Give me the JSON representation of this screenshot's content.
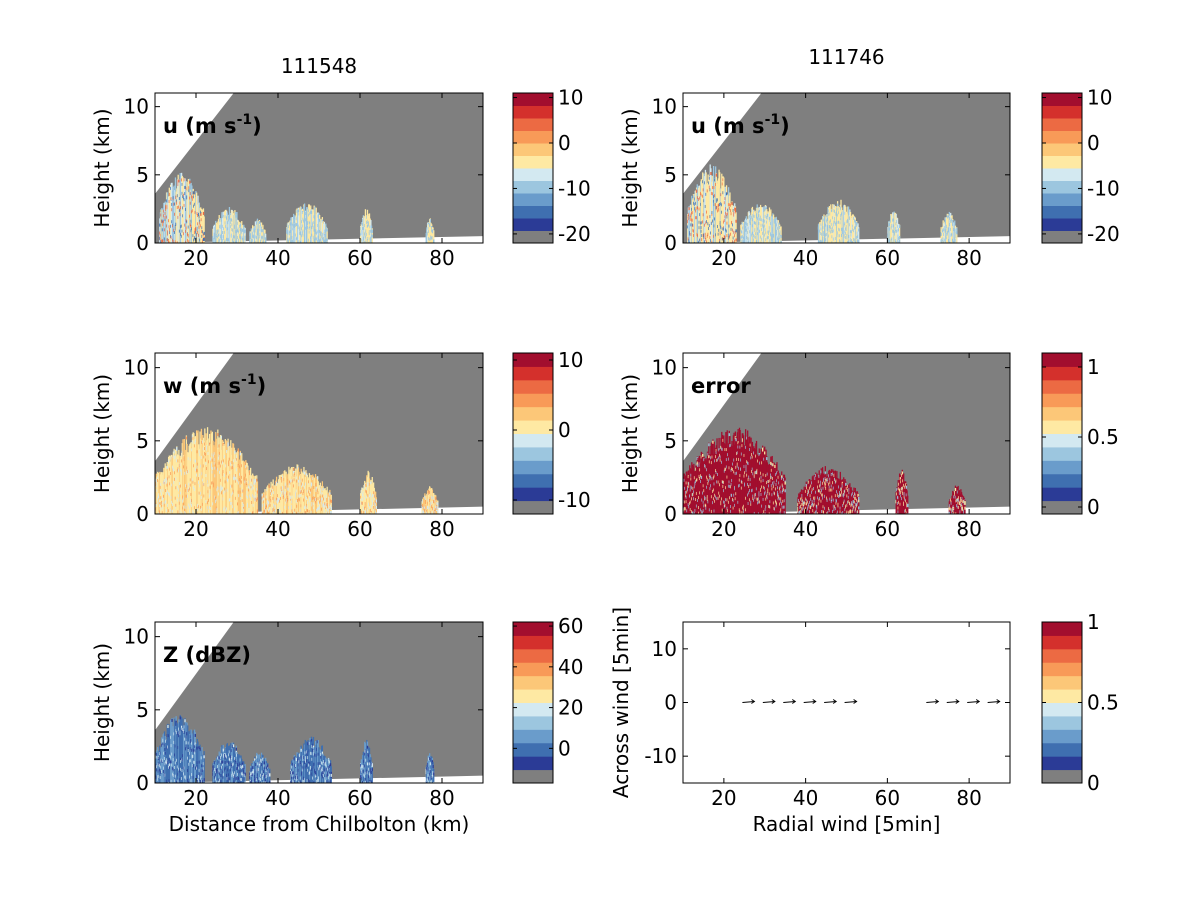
{
  "figure": {
    "col_titles": [
      "111548",
      "111746"
    ],
    "palette": [
      "#7f7f7f",
      "#2b3b96",
      "#3f6fb0",
      "#6a9ccb",
      "#9cc6df",
      "#d3e9f1",
      "#fee9a3",
      "#fcc778",
      "#f89a58",
      "#ec6a43",
      "#d4302c",
      "#a20e2e"
    ],
    "panels": [
      {
        "key": "u_111548",
        "type": "section",
        "label_main": "u (m s",
        "label_sup": "-1",
        "label_tail": ")",
        "x_ticks": [
          20,
          40,
          60,
          80
        ],
        "y_ticks": [
          0,
          5,
          10
        ],
        "ylabel": "Height (km)",
        "xlabel": "",
        "colorbar_ticks": [
          "10",
          "0",
          "-10",
          "-20"
        ],
        "echo_style": "u"
      },
      {
        "key": "u_111746",
        "type": "section",
        "label_main": "u (m s",
        "label_sup": "-1",
        "label_tail": ")",
        "x_ticks": [
          20,
          40,
          60,
          80
        ],
        "y_ticks": [
          0,
          5,
          10
        ],
        "ylabel": "Height (km)",
        "xlabel": "",
        "colorbar_ticks": [
          "10",
          "0",
          "-10",
          "-20"
        ],
        "echo_style": "u"
      },
      {
        "key": "w_111548",
        "type": "section",
        "label_main": "w (m s",
        "label_sup": "-1",
        "label_tail": ")",
        "x_ticks": [
          20,
          40,
          60,
          80
        ],
        "y_ticks": [
          0,
          5,
          10
        ],
        "ylabel": "Height (km)",
        "xlabel": "",
        "colorbar_ticks": [
          "10",
          "0",
          "-10"
        ],
        "echo_style": "w"
      },
      {
        "key": "error_111746",
        "type": "section",
        "label_main": "error",
        "label_sup": "",
        "label_tail": "",
        "x_ticks": [
          20,
          40,
          60,
          80
        ],
        "y_ticks": [
          0,
          5,
          10
        ],
        "ylabel": "Height (km)",
        "xlabel": "",
        "colorbar_ticks": [
          "1",
          "0.5",
          "0"
        ],
        "echo_style": "error"
      },
      {
        "key": "Z_111548",
        "type": "section",
        "label_main": "Z (dBZ)",
        "label_sup": "",
        "label_tail": "",
        "x_ticks": [
          20,
          40,
          60,
          80
        ],
        "y_ticks": [
          0,
          5,
          10
        ],
        "ylabel": "Height (km)",
        "xlabel": "Distance from Chilbolton (km)",
        "colorbar_ticks": [
          "60",
          "40",
          "20",
          "0"
        ],
        "echo_style": "Z"
      },
      {
        "key": "wind_111746",
        "type": "quiver",
        "label_main": "",
        "label_sup": "",
        "label_tail": "",
        "x_ticks": [
          20,
          40,
          60,
          80
        ],
        "y_ticks": [
          10,
          0,
          -10
        ],
        "ylabel": "Across wind [5min]",
        "xlabel": "Radial wind [5min]",
        "colorbar_ticks": [
          "1",
          "0.5",
          "0"
        ],
        "echo_style": "none"
      }
    ]
  },
  "chart_data": [
    {
      "type": "heatmap",
      "title": "111548",
      "panel_label": "u (m s-1)",
      "xlabel": "",
      "ylabel": "Height (km)",
      "xlim": [
        10,
        90
      ],
      "ylim": [
        0,
        11
      ],
      "colorbar": {
        "min": -22,
        "max": 11,
        "ticks": [
          10,
          0,
          -10,
          -20
        ]
      },
      "echoes_x_km": [
        [
          11,
          22
        ],
        [
          24,
          32
        ],
        [
          33,
          37
        ],
        [
          42,
          52
        ],
        [
          60,
          63
        ],
        [
          76,
          78
        ]
      ],
      "echo_top_km": [
        5.2,
        2.7,
        1.8,
        3.0,
        2.6,
        1.9
      ]
    },
    {
      "type": "heatmap",
      "title": "111746",
      "panel_label": "u (m s-1)",
      "xlabel": "",
      "ylabel": "Height (km)",
      "xlim": [
        10,
        90
      ],
      "ylim": [
        0,
        11
      ],
      "colorbar": {
        "min": -22,
        "max": 11,
        "ticks": [
          10,
          0,
          -10,
          -20
        ]
      },
      "echoes_x_km": [
        [
          11,
          23
        ],
        [
          24,
          34
        ],
        [
          43,
          53
        ],
        [
          60,
          63
        ],
        [
          73,
          77
        ]
      ],
      "echo_top_km": [
        5.8,
        3.0,
        3.2,
        2.7,
        2.4
      ]
    },
    {
      "type": "heatmap",
      "panel_label": "w (m s-1)",
      "xlabel": "",
      "ylabel": "Height (km)",
      "xlim": [
        10,
        90
      ],
      "ylim": [
        0,
        11
      ],
      "colorbar": {
        "min": -12,
        "max": 11,
        "ticks": [
          10,
          0,
          -10
        ]
      },
      "echoes_x_km": [
        [
          10,
          35
        ],
        [
          36,
          53
        ],
        [
          60,
          64
        ],
        [
          75,
          79
        ]
      ],
      "echo_top_km": [
        6,
        3.4,
        3.0,
        1.9
      ]
    },
    {
      "type": "heatmap",
      "panel_label": "error",
      "xlabel": "",
      "ylabel": "Height (km)",
      "xlim": [
        10,
        90
      ],
      "ylim": [
        0,
        11
      ],
      "colorbar": {
        "min": -0.05,
        "max": 1.1,
        "ticks": [
          1,
          0.5,
          0
        ]
      },
      "echoes_x_km": [
        [
          10,
          35
        ],
        [
          38,
          53
        ],
        [
          62,
          65
        ],
        [
          75,
          79
        ]
      ],
      "echo_top_km": [
        6,
        3.3,
        3.2,
        2.0
      ]
    },
    {
      "type": "heatmap",
      "panel_label": "Z (dBZ)",
      "xlabel": "Distance from Chilbolton (km)",
      "ylabel": "Height (km)",
      "xlim": [
        10,
        90
      ],
      "ylim": [
        0,
        11
      ],
      "colorbar": {
        "min": -17,
        "max": 62,
        "ticks": [
          60,
          40,
          20,
          0
        ]
      },
      "echoes_x_km": [
        [
          10,
          22
        ],
        [
          24,
          32
        ],
        [
          33,
          38
        ],
        [
          43,
          53
        ],
        [
          60,
          63
        ],
        [
          76,
          78
        ]
      ],
      "echo_top_km": [
        4.8,
        3.0,
        2.2,
        3.2,
        3.0,
        2.3
      ]
    },
    {
      "type": "scatter",
      "xlabel": "Radial wind [5min]",
      "ylabel": "Across wind [5min]",
      "xlim": [
        10,
        90
      ],
      "ylim": [
        -15,
        15
      ],
      "colorbar": {
        "min": 0,
        "max": 1,
        "ticks": [
          1,
          0.5,
          0
        ]
      },
      "x": [
        26,
        31,
        36,
        41,
        46,
        51,
        71,
        76,
        81,
        86
      ],
      "y": [
        0,
        0,
        0,
        0,
        0,
        0,
        0,
        0,
        0,
        0
      ]
    }
  ]
}
